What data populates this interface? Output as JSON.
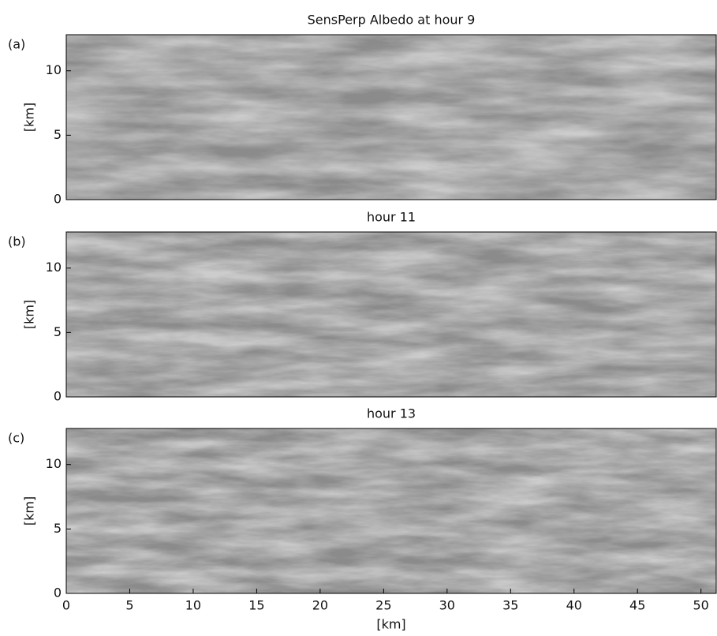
{
  "chart_data": [
    {
      "type": "image",
      "title": "SensPerp Albedo at hour 9",
      "panel_label": "(a)",
      "ylabel": "[km]",
      "xlim": [
        0,
        51.2
      ],
      "ylim": [
        0,
        12.8
      ],
      "yticks": [
        0,
        5,
        10
      ]
    },
    {
      "type": "image",
      "title": "hour 11",
      "panel_label": "(b)",
      "ylabel": "[km]",
      "xlim": [
        0,
        51.2
      ],
      "ylim": [
        0,
        12.8
      ],
      "yticks": [
        0,
        5,
        10
      ]
    },
    {
      "type": "image",
      "title": "hour 13",
      "panel_label": "(c)",
      "ylabel": "[km]",
      "xlabel": "[km]",
      "xlim": [
        0,
        51.2
      ],
      "ylim": [
        0,
        12.8
      ],
      "yticks": [
        0,
        5,
        10
      ],
      "xticks": [
        0,
        5,
        10,
        15,
        20,
        25,
        30,
        35,
        40,
        45,
        50
      ]
    }
  ]
}
